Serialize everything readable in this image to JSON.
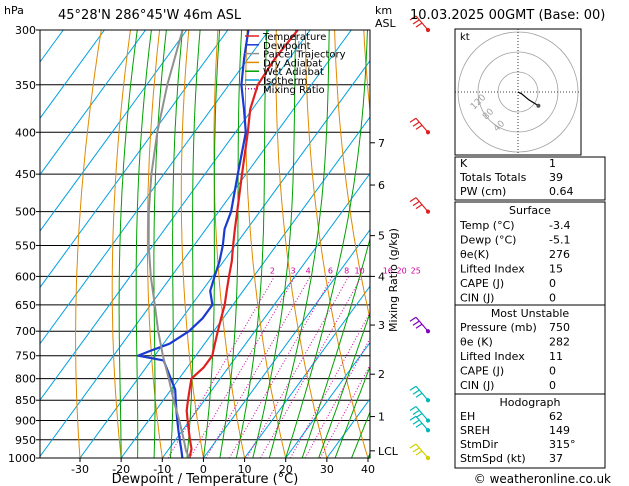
{
  "header": {
    "pressure_unit": "hPa",
    "location": "45°28'N  286°45'W  46m  ASL",
    "km_label": "km",
    "asl_label": "ASL",
    "datetime": "10.03.2025  00GMT  (Base: 00)"
  },
  "legend": {
    "items": [
      {
        "label": "Temperature",
        "color": "#e02020",
        "style": "solid"
      },
      {
        "label": "Dewpoint",
        "color": "#1a3ad0",
        "style": "solid"
      },
      {
        "label": "Parcel Trajectory",
        "color": "#909090",
        "style": "solid"
      },
      {
        "label": "Dry Adiabat",
        "color": "#e08a00",
        "style": "solid"
      },
      {
        "label": "Wet Adiabat",
        "color": "#00a000",
        "style": "solid"
      },
      {
        "label": "Isotherm",
        "color": "#00a0e0",
        "style": "solid"
      },
      {
        "label": "Mixing Ratio",
        "color": "#d000a0",
        "style": "dotted"
      }
    ]
  },
  "chart_data": {
    "type": "line",
    "title": "45°28'N  286°45'W  46m  ASL",
    "xlabel": "Dewpoint / Temperature (°C)",
    "ylabel": "hPa",
    "secondary_ylabel": "Mixing Ratio (g/kg)",
    "x_ticks": [
      -30,
      -20,
      -10,
      0,
      10,
      20,
      30,
      40
    ],
    "xlim": [
      -40,
      40
    ],
    "pressure_levels": [
      300,
      350,
      400,
      450,
      500,
      550,
      600,
      650,
      700,
      750,
      800,
      850,
      900,
      950,
      1000
    ],
    "ylim": [
      1000,
      300
    ],
    "km_ticks": [
      {
        "label": "7",
        "p": 412
      },
      {
        "label": "6",
        "p": 464
      },
      {
        "label": "5",
        "p": 535
      },
      {
        "label": "4",
        "p": 600
      },
      {
        "label": "3",
        "p": 688
      },
      {
        "label": "2",
        "p": 790
      },
      {
        "label": "1",
        "p": 890
      },
      {
        "label": "LCL",
        "p": 980
      }
    ],
    "mixing_ratio_labels": [
      "2",
      "3",
      "4",
      "6",
      "8",
      "10",
      "16",
      "20",
      "25"
    ],
    "mixing_ratios": [
      2,
      3,
      4,
      6,
      8,
      10,
      16,
      20,
      25
    ],
    "series": [
      {
        "name": "Temperature",
        "color": "#e02020",
        "points": [
          [
            1000,
            -3.4
          ],
          [
            975,
            -4.5
          ],
          [
            950,
            -6.5
          ],
          [
            925,
            -8.5
          ],
          [
            900,
            -10.5
          ],
          [
            875,
            -12.5
          ],
          [
            850,
            -14
          ],
          [
            825,
            -15.5
          ],
          [
            800,
            -17
          ],
          [
            775,
            -16
          ],
          [
            750,
            -16
          ],
          [
            725,
            -17.5
          ],
          [
            700,
            -19
          ],
          [
            675,
            -20.5
          ],
          [
            650,
            -22
          ],
          [
            625,
            -24
          ],
          [
            600,
            -26
          ],
          [
            575,
            -28
          ],
          [
            550,
            -30.5
          ],
          [
            525,
            -33
          ],
          [
            500,
            -35.5
          ],
          [
            450,
            -41
          ],
          [
            400,
            -47
          ],
          [
            375,
            -50.5
          ],
          [
            350,
            -53
          ],
          [
            325,
            -53.5
          ],
          [
            300,
            -53
          ]
        ]
      },
      {
        "name": "Dewpoint",
        "color": "#1a3ad0",
        "points": [
          [
            1000,
            -5.1
          ],
          [
            975,
            -7
          ],
          [
            950,
            -9
          ],
          [
            925,
            -11
          ],
          [
            900,
            -13
          ],
          [
            875,
            -15
          ],
          [
            850,
            -17
          ],
          [
            825,
            -19
          ],
          [
            800,
            -22
          ],
          [
            760,
            -27
          ],
          [
            750,
            -34
          ],
          [
            740,
            -32
          ],
          [
            725,
            -28.5
          ],
          [
            700,
            -26
          ],
          [
            675,
            -25
          ],
          [
            650,
            -25
          ],
          [
            625,
            -28
          ],
          [
            600,
            -29.5
          ],
          [
            575,
            -31
          ],
          [
            550,
            -33
          ],
          [
            525,
            -35.5
          ],
          [
            500,
            -37
          ],
          [
            450,
            -42
          ],
          [
            400,
            -47.5
          ],
          [
            375,
            -52
          ],
          [
            350,
            -57
          ],
          [
            325,
            -61
          ],
          [
            300,
            -65
          ]
        ]
      },
      {
        "name": "Parcel Trajectory",
        "color": "#909090",
        "points": [
          [
            1000,
            -3.4
          ],
          [
            980,
            -5.5
          ],
          [
            950,
            -8
          ],
          [
            900,
            -12.5
          ],
          [
            850,
            -17.5
          ],
          [
            800,
            -22.5
          ],
          [
            750,
            -28
          ],
          [
            700,
            -33.5
          ],
          [
            650,
            -39
          ],
          [
            600,
            -45
          ],
          [
            550,
            -51
          ],
          [
            500,
            -57
          ],
          [
            450,
            -63
          ],
          [
            400,
            -69
          ],
          [
            350,
            -75
          ],
          [
            300,
            -81
          ]
        ]
      }
    ]
  },
  "hodograph": {
    "label": "kt",
    "ring_labels": [
      "40",
      "80",
      "120"
    ],
    "points": [
      [
        0,
        0
      ],
      [
        6,
        -3
      ],
      [
        18,
        -13
      ],
      [
        34,
        -23
      ]
    ],
    "marker_color": "#505050"
  },
  "indices": {
    "top": [
      {
        "label": "K",
        "value": "1"
      },
      {
        "label": "Totals Totals",
        "value": "39"
      },
      {
        "label": "PW (cm)",
        "value": "0.64"
      }
    ],
    "surface": {
      "title": "Surface",
      "rows": [
        {
          "label": "Temp (°C)",
          "value": "-3.4"
        },
        {
          "label": "Dewp (°C)",
          "value": "-5.1"
        },
        {
          "label": "θe(K)",
          "value": "276"
        },
        {
          "label": "Lifted Index",
          "value": "15"
        },
        {
          "label": "CAPE (J)",
          "value": "0"
        },
        {
          "label": "CIN (J)",
          "value": "0"
        }
      ]
    },
    "most_unstable": {
      "title": "Most Unstable",
      "rows": [
        {
          "label": "Pressure (mb)",
          "value": "750"
        },
        {
          "label": "θe (K)",
          "value": "282"
        },
        {
          "label": "Lifted Index",
          "value": "11"
        },
        {
          "label": "CAPE (J)",
          "value": "0"
        },
        {
          "label": "CIN (J)",
          "value": "0"
        }
      ]
    },
    "hodograph_box": {
      "title": "Hodograph",
      "rows": [
        {
          "label": "EH",
          "value": "62"
        },
        {
          "label": "SREH",
          "value": "149"
        },
        {
          "label": "StmDir",
          "value": "315°"
        },
        {
          "label": "StmSpd (kt)",
          "value": "37"
        }
      ]
    }
  },
  "wind_barbs": [
    {
      "p": 300,
      "color": "#e02020"
    },
    {
      "p": 400,
      "color": "#e02020"
    },
    {
      "p": 500,
      "color": "#e02020"
    },
    {
      "p": 700,
      "color": "#8000c0"
    },
    {
      "p": 850,
      "color": "#00b8b8"
    },
    {
      "p": 900,
      "color": "#00b8b8"
    },
    {
      "p": 925,
      "color": "#00b8b8"
    },
    {
      "p": 1000,
      "color": "#d0d000"
    }
  ],
  "footer": {
    "copyright": "© weatheronline.co.uk"
  }
}
